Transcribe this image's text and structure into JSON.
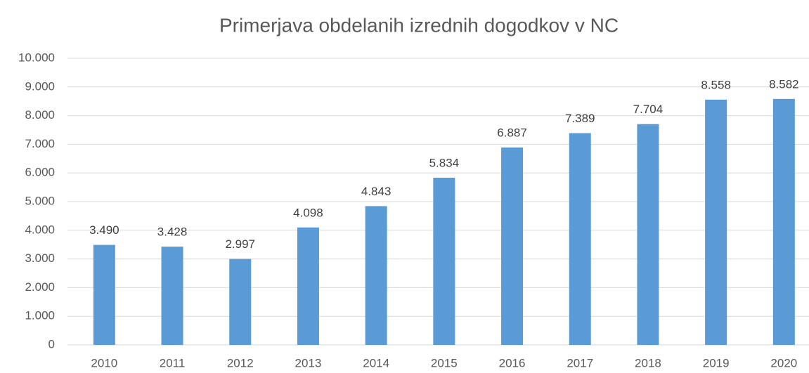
{
  "chart_data": {
    "type": "bar",
    "title": "Primerjava obdelanih izrednih dogodkov v NC",
    "categories": [
      "2010",
      "2011",
      "2012",
      "2013",
      "2014",
      "2015",
      "2016",
      "2017",
      "2018",
      "2019",
      "2020"
    ],
    "values": [
      3490,
      3428,
      2997,
      4098,
      4843,
      5834,
      6887,
      7389,
      7704,
      8558,
      8582
    ],
    "value_labels": [
      "3.490",
      "3.428",
      "2.997",
      "4.098",
      "4.843",
      "5.834",
      "6.887",
      "7.389",
      "7.704",
      "8.558",
      "8.582"
    ],
    "color": "#5b9bd5",
    "ylim": [
      0,
      10000
    ],
    "yticks": [
      0,
      {
        "value": 1000,
        "label": "1.000"
      },
      {
        "value": 2000,
        "label": "2.000"
      },
      {
        "value": 3000,
        "label": "3.000"
      },
      {
        "value": 4000,
        "label": "4.000"
      },
      {
        "value": 5000,
        "label": "5.000"
      },
      {
        "value": 6000,
        "label": "6.000"
      },
      {
        "value": 7000,
        "label": "7.000"
      },
      {
        "value": 8000,
        "label": "8.000"
      },
      {
        "value": 9000,
        "label": "9.000"
      },
      {
        "value": 10000,
        "label": "10.000"
      }
    ],
    "grid": true
  }
}
